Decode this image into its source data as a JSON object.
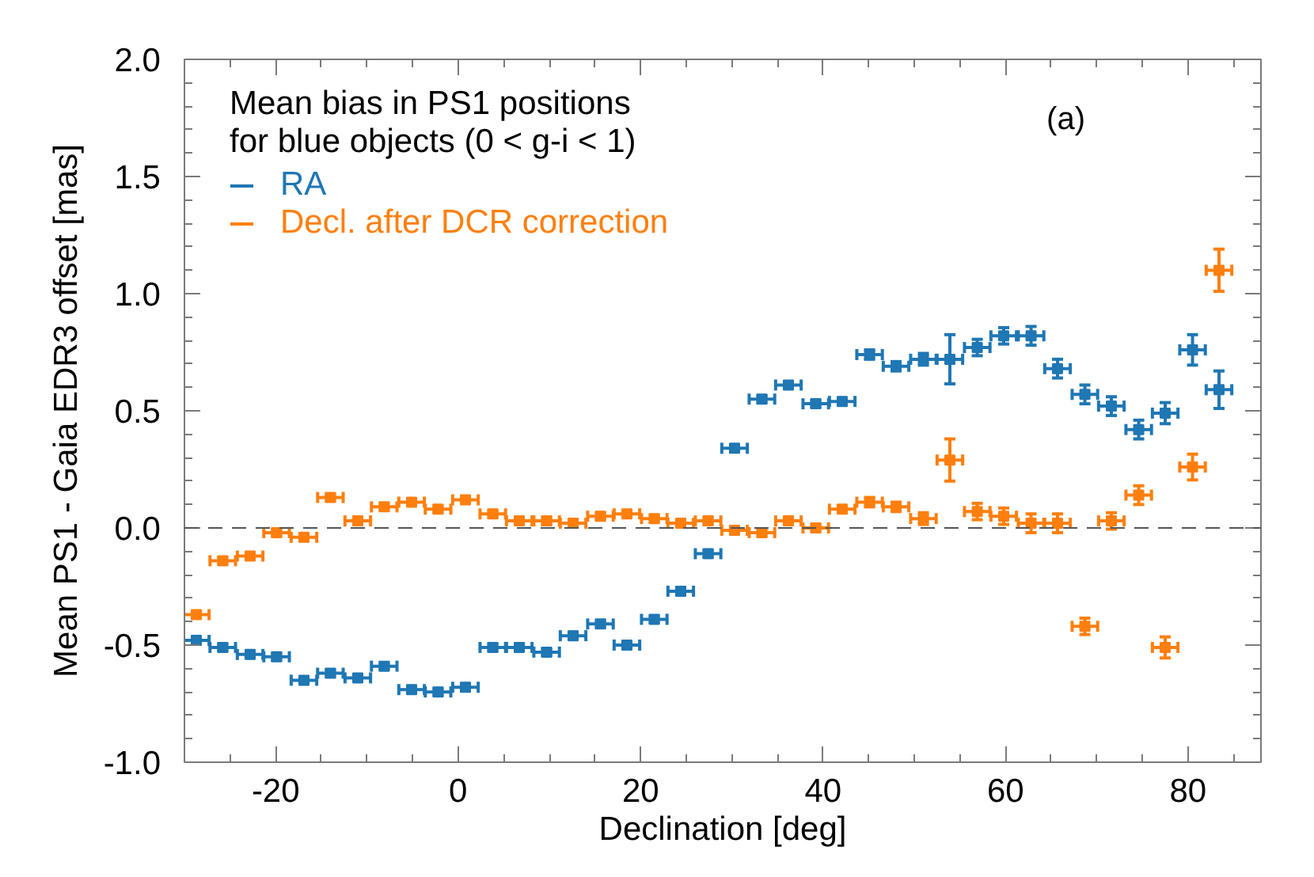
{
  "chart_data": {
    "type": "scatter",
    "xlabel": "Declination [deg]",
    "ylabel": "Mean PS1 - Gaia EDR3 offset [mas]",
    "legend_title": "Mean bias in PS1 positions\nfor blue objects (0 < g-i < 1)",
    "annotations": [
      "(a)"
    ],
    "x": [
      -28.7,
      -25.8,
      -22.8,
      -19.9,
      -16.9,
      -14.0,
      -11.0,
      -8.1,
      -5.1,
      -2.2,
      0.8,
      3.8,
      6.7,
      9.7,
      12.6,
      15.6,
      18.5,
      21.5,
      24.4,
      27.4,
      30.3,
      33.3,
      36.2,
      39.2,
      42.1,
      45.1,
      48.0,
      51.0,
      53.9,
      56.9,
      59.8,
      62.8,
      65.7,
      68.7,
      71.6,
      74.6,
      77.5,
      80.5,
      83.4
    ],
    "xlim": [
      -30,
      88
    ],
    "ylim": [
      -1.0,
      2.0
    ],
    "xticks": [
      -20,
      0,
      20,
      40,
      60,
      80
    ],
    "yticks": [
      {
        "value": -1.0,
        "label": "-1.0"
      },
      {
        "value": -0.5,
        "label": "-0.5"
      },
      {
        "value": 0,
        "label": "0.0"
      },
      {
        "value": 0.5,
        "label": "0.5"
      },
      {
        "value": 1.0,
        "label": "1.0"
      },
      {
        "value": 1.5,
        "label": "1.5"
      },
      {
        "value": 2.0,
        "label": "2.0"
      }
    ],
    "marker": "square",
    "legend": "top left",
    "ref_lines": [
      {
        "axis": "y",
        "value": 0,
        "line_style": "dashed",
        "color": "#555555"
      }
    ],
    "series": [
      {
        "name": "RA",
        "color": "#1f77b4",
        "values": [
          -0.48,
          -0.51,
          -0.54,
          -0.55,
          -0.65,
          -0.62,
          -0.64,
          -0.59,
          -0.69,
          -0.7,
          -0.68,
          -0.51,
          -0.51,
          -0.53,
          -0.46,
          -0.41,
          -0.5,
          -0.39,
          -0.27,
          -0.11,
          0.34,
          0.55,
          0.61,
          0.53,
          0.54,
          0.74,
          0.69,
          0.72,
          0.72,
          0.77,
          0.82,
          0.82,
          0.68,
          0.57,
          0.52,
          0.42,
          0.49,
          0.76,
          0.59
        ],
        "errors": [
          0.015,
          0.015,
          0.015,
          0.015,
          0.015,
          0.015,
          0.015,
          0.015,
          0.015,
          0.015,
          0.015,
          0.015,
          0.015,
          0.015,
          0.015,
          0.015,
          0.015,
          0.015,
          0.015,
          0.015,
          0.015,
          0.015,
          0.015,
          0.015,
          0.015,
          0.02,
          0.02,
          0.025,
          0.105,
          0.035,
          0.035,
          0.04,
          0.04,
          0.04,
          0.04,
          0.04,
          0.045,
          0.065,
          0.08
        ],
        "xerrors": [
          1.4,
          1.4,
          1.4,
          1.4,
          1.4,
          1.4,
          1.4,
          1.4,
          1.4,
          1.4,
          1.4,
          1.4,
          1.4,
          1.4,
          1.4,
          1.4,
          1.4,
          1.4,
          1.4,
          1.4,
          1.4,
          1.4,
          1.4,
          1.4,
          1.4,
          1.4,
          1.4,
          1.4,
          1.4,
          1.4,
          1.4,
          1.4,
          1.4,
          1.4,
          1.4,
          1.4,
          1.4,
          1.4,
          1.4
        ]
      },
      {
        "name": "Decl. after DCR correction",
        "color": "#ff7f0e",
        "values": [
          -0.37,
          -0.14,
          -0.12,
          -0.02,
          -0.04,
          0.13,
          0.03,
          0.09,
          0.11,
          0.08,
          0.12,
          0.06,
          0.03,
          0.03,
          0.02,
          0.05,
          0.06,
          0.04,
          0.02,
          0.03,
          -0.01,
          -0.02,
          0.03,
          0.0,
          0.08,
          0.11,
          0.09,
          0.04,
          0.29,
          0.07,
          0.05,
          0.02,
          0.02,
          -0.42,
          0.03,
          0.14,
          -0.51,
          0.26,
          1.1
        ],
        "errors": [
          0.015,
          0.015,
          0.015,
          0.015,
          0.015,
          0.015,
          0.015,
          0.015,
          0.015,
          0.015,
          0.015,
          0.015,
          0.015,
          0.015,
          0.015,
          0.015,
          0.015,
          0.015,
          0.015,
          0.015,
          0.015,
          0.015,
          0.015,
          0.015,
          0.015,
          0.02,
          0.02,
          0.025,
          0.09,
          0.035,
          0.035,
          0.04,
          0.04,
          0.035,
          0.035,
          0.04,
          0.045,
          0.055,
          0.09
        ],
        "xerrors": [
          1.4,
          1.4,
          1.4,
          1.4,
          1.4,
          1.4,
          1.4,
          1.4,
          1.4,
          1.4,
          1.4,
          1.4,
          1.4,
          1.4,
          1.4,
          1.4,
          1.4,
          1.4,
          1.4,
          1.4,
          1.4,
          1.4,
          1.4,
          1.4,
          1.4,
          1.4,
          1.4,
          1.4,
          1.4,
          1.4,
          1.4,
          1.4,
          1.4,
          1.4,
          1.4,
          1.4,
          1.4,
          1.4,
          1.4
        ]
      }
    ]
  }
}
